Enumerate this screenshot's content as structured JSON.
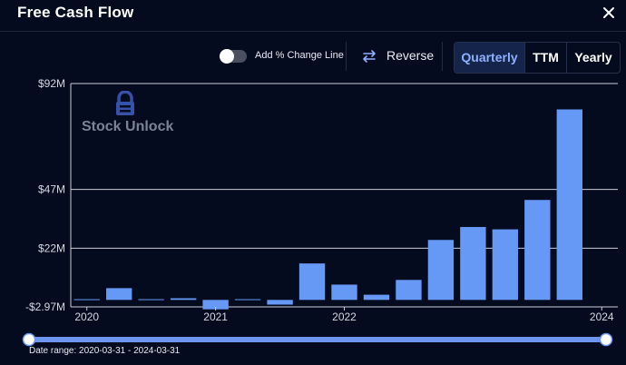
{
  "header": {
    "title": "Free Cash Flow",
    "close_icon": "close-icon"
  },
  "toolbar": {
    "change_line_label": "Add % Change Line",
    "change_line_on": false,
    "reverse_label": "Reverse",
    "reverse_icon": "swap-arrows-icon",
    "periods": [
      "Quarterly",
      "TTM",
      "Yearly"
    ],
    "active_period": "Quarterly"
  },
  "watermark": {
    "text": "Stock Unlock",
    "icon": "lock-logo-icon"
  },
  "footer": {
    "date_range": "Date range: 2020-03-31 - 2024-03-31"
  },
  "colors": {
    "background": "#050b1f",
    "bar": "#6699f5",
    "accent": "#8fb0ff",
    "slider": "#6e95f0"
  },
  "chart_data": {
    "type": "bar",
    "title": "Free Cash Flow",
    "categories": [
      "2020-03-31",
      "2020-06-30",
      "2020-09-30",
      "2020-12-31",
      "2021-03-31",
      "2021-06-30",
      "2021-09-30",
      "2021-12-31",
      "2022-03-31",
      "2022-06-30",
      "2022-09-30",
      "2022-12-31",
      "2023-03-31",
      "2023-06-30",
      "2023-09-30",
      "2023-12-31",
      "2024-03-31"
    ],
    "values": [
      0.3,
      5.0,
      0.3,
      0.7,
      -4.0,
      0.3,
      -2.0,
      15.5,
      6.5,
      2.2,
      8.5,
      25.5,
      31.0,
      30.0,
      42.5,
      81.0,
      0
    ],
    "yticks": [
      92,
      47,
      22,
      -2.97
    ],
    "ytick_labels": [
      "$92M",
      "$47M",
      "$22M",
      "-$2.97M"
    ],
    "xtick_labels": [
      "2020",
      "2021",
      "2022",
      "2024"
    ],
    "xtick_positions": [
      "2020-03-31",
      "2021-03-31",
      "2022-03-31",
      "2024-03-31"
    ],
    "ylim": [
      -2.97,
      92
    ],
    "grid": true,
    "legend": "none"
  }
}
